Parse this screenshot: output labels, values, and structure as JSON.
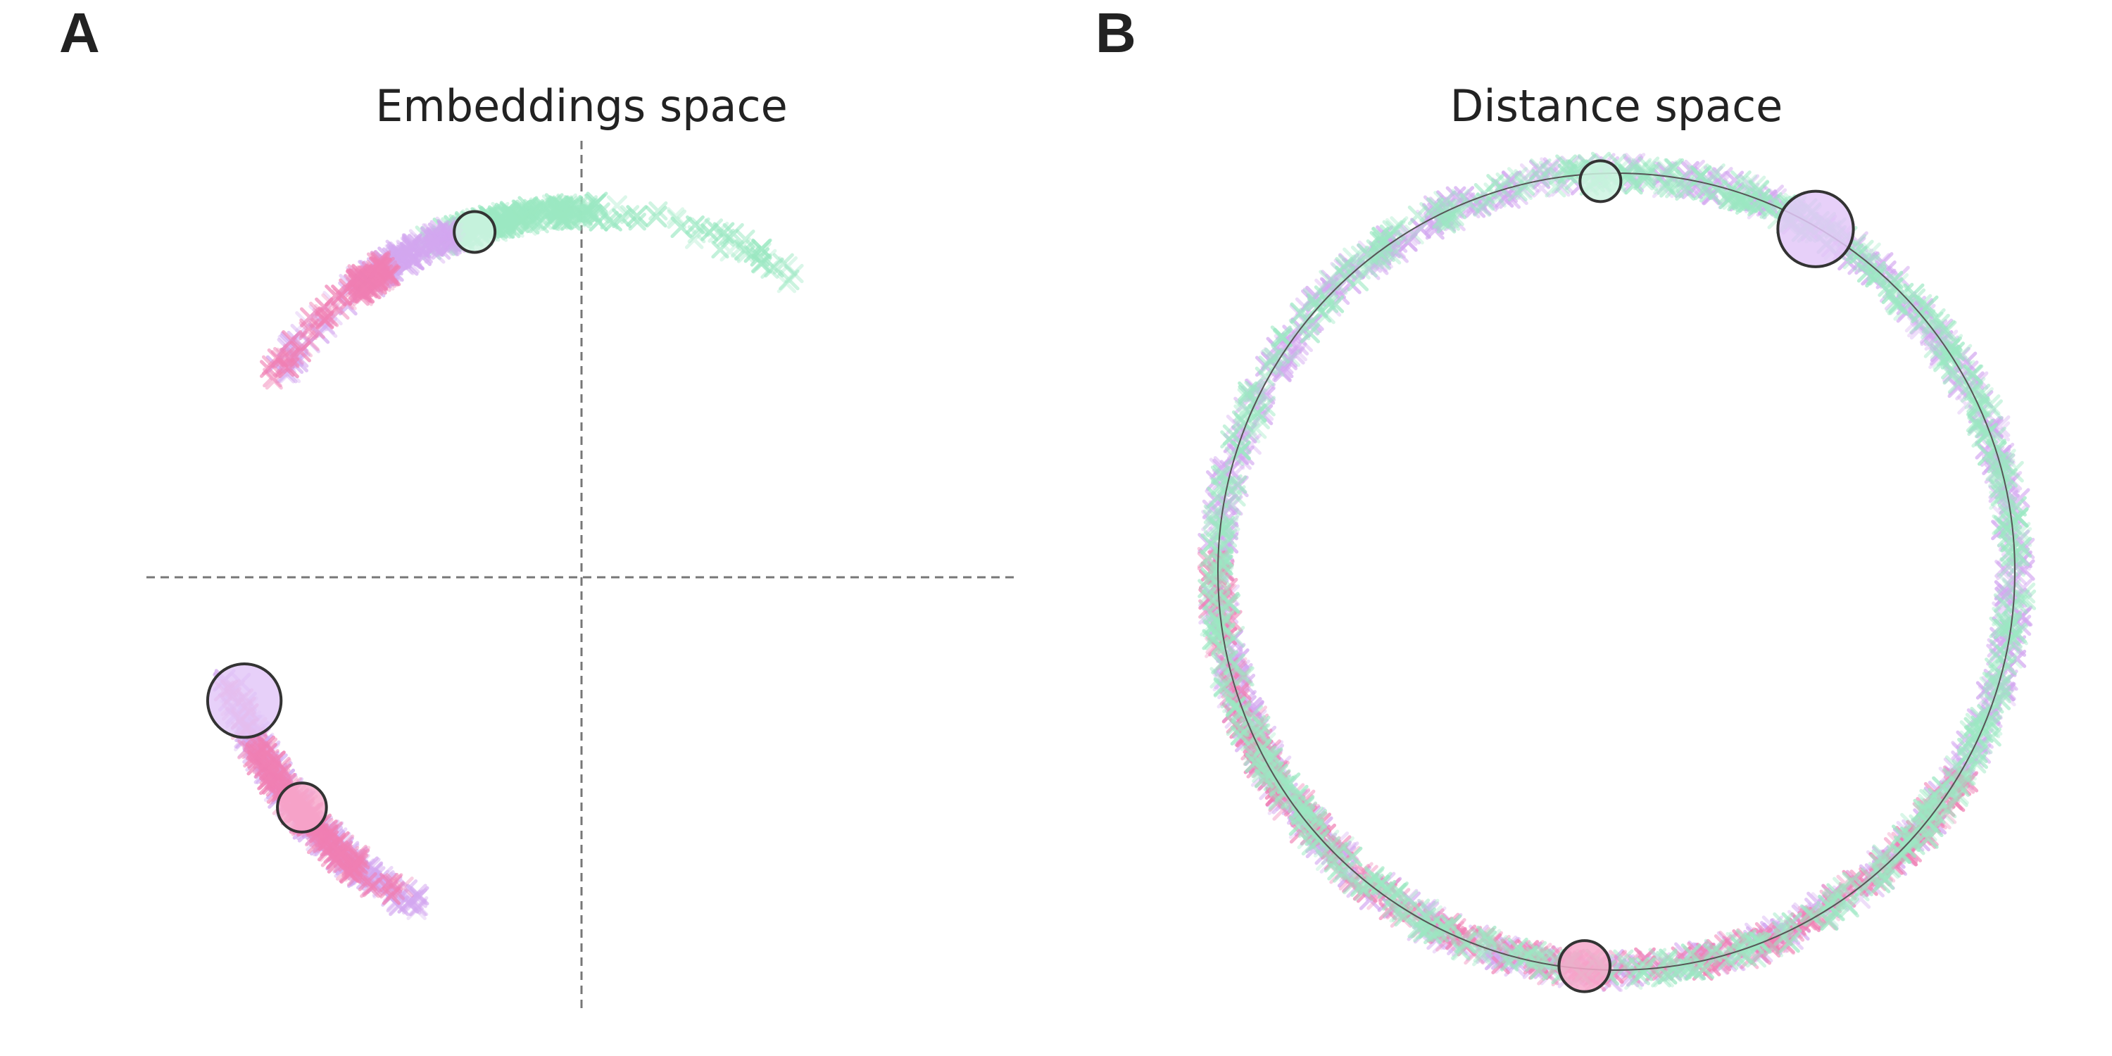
{
  "chart_data": [
    {
      "panel": "A",
      "type": "scatter",
      "title": "Embeddings space",
      "xlabel": "",
      "ylabel": "",
      "xlim": [
        -1.05,
        1.05
      ],
      "ylim": [
        -1.05,
        1.05
      ],
      "axes_visible": false,
      "reference_lines": [
        {
          "orientation": "vertical",
          "value": 0,
          "style": "dashed"
        },
        {
          "orientation": "horizontal",
          "value": 0,
          "style": "dashed"
        }
      ],
      "grid": false,
      "legend": "none",
      "groups": [
        {
          "color": "#9be8c2",
          "arcs": [
            {
              "cx": 0,
              "cy": 0,
              "r": 0.89,
              "start_deg": 55,
              "end_deg": 115,
              "dense_start_deg": 88,
              "dense_end_deg": 112
            }
          ],
          "marker": "x"
        },
        {
          "color": "#d3a7f0",
          "arcs": [
            {
              "cx": 0,
              "cy": 0,
              "r": 0.89,
              "start_deg": 110,
              "end_deg": 146,
              "dense_start_deg": 110,
              "dense_end_deg": 125
            },
            {
              "cx": 0,
              "cy": 0,
              "r": 0.89,
              "start_deg": 196,
              "end_deg": 244,
              "dense_start_deg": 200,
              "dense_end_deg": 244
            }
          ],
          "marker": "x"
        },
        {
          "color": "#f07fb3",
          "arcs": [
            {
              "cx": 0,
              "cy": 0,
              "r": 0.89,
              "start_deg": 122,
              "end_deg": 149,
              "dense_start_deg": 122,
              "dense_end_deg": 128
            },
            {
              "cx": 0,
              "cy": 0,
              "r": 0.89,
              "start_deg": 197,
              "end_deg": 242,
              "dense_start_deg": 208,
              "dense_end_deg": 232
            }
          ],
          "marker": "x"
        }
      ],
      "centroids": [
        {
          "x": -0.26,
          "y": 0.84,
          "size": 1.0,
          "color": "#cdf3e0"
        },
        {
          "x": -0.82,
          "y": -0.3,
          "size": 1.8,
          "color": "#e3c8f8"
        },
        {
          "x": -0.68,
          "y": -0.56,
          "size": 1.2,
          "color": "#f7a8cb"
        }
      ]
    },
    {
      "panel": "B",
      "type": "scatter",
      "title": "Distance space",
      "xlabel": "",
      "ylabel": "",
      "xlim": [
        -1.05,
        1.05
      ],
      "ylim": [
        -1.05,
        1.05
      ],
      "axes_visible": false,
      "reference_circle": {
        "cx": 0,
        "cy": 0,
        "r": 1.0
      },
      "grid": false,
      "legend": "none",
      "groups": [
        {
          "color": "#d3a7f0",
          "arcs": [
            {
              "cx": 0,
              "cy": 0,
              "r": 1.0,
              "start_deg": 0,
              "end_deg": 360
            }
          ],
          "marker": "x"
        },
        {
          "color": "#f07fb3",
          "arcs": [
            {
              "cx": 0,
              "cy": 0,
              "r": 1.0,
              "start_deg": 178,
              "end_deg": 330
            }
          ],
          "marker": "x"
        },
        {
          "color": "#9be8c2",
          "arcs": [
            {
              "cx": 0,
              "cy": 0,
              "r": 1.0,
              "start_deg": 0,
              "end_deg": 360
            }
          ],
          "marker": "x"
        }
      ],
      "centroids": [
        {
          "x": -0.04,
          "y": 0.98,
          "size": 1.0,
          "color": "#cdf3e0"
        },
        {
          "x": 0.5,
          "y": 0.86,
          "size": 1.85,
          "color": "#e3c8f8"
        },
        {
          "x": -0.08,
          "y": -0.99,
          "size": 1.25,
          "color": "#f7a8cb"
        }
      ]
    }
  ]
}
